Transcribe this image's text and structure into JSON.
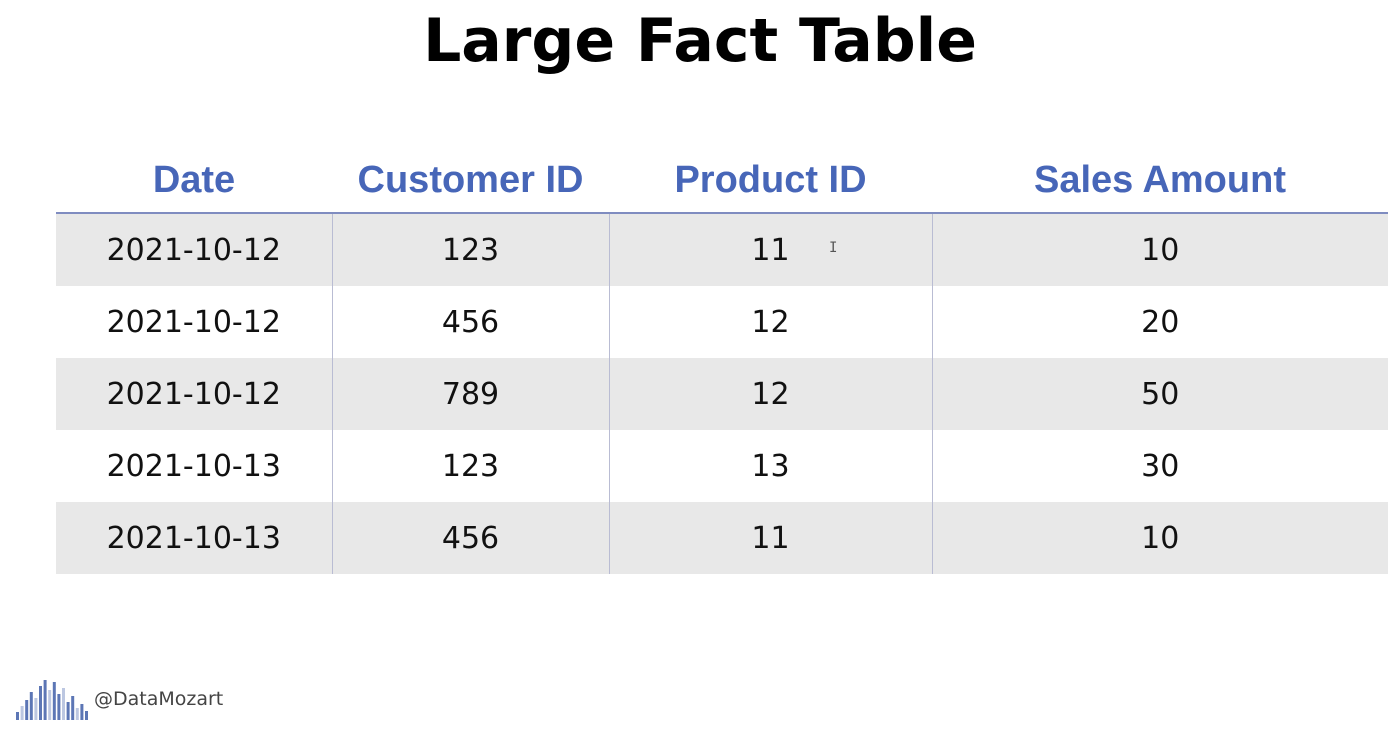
{
  "title": "Large Fact Table",
  "theme": {
    "header_color": "#4766b8",
    "stripe_color": "#e8e8e8",
    "divider_color": "#b9bcd3",
    "logo_color": "#3f5ea8"
  },
  "table": {
    "headers": [
      "Date",
      "Customer ID",
      "Product ID",
      "Sales Amount"
    ],
    "rows": [
      [
        "2021-10-12",
        "123",
        "11",
        "10"
      ],
      [
        "2021-10-12",
        "456",
        "12",
        "20"
      ],
      [
        "2021-10-12",
        "789",
        "12",
        "50"
      ],
      [
        "2021-10-13",
        "123",
        "13",
        "30"
      ],
      [
        "2021-10-13",
        "456",
        "11",
        "10"
      ]
    ]
  },
  "cursor": {
    "icon": "text-cursor-icon",
    "glyph": "I"
  },
  "footer": {
    "logo_icon": "datamozart-bars-logo-icon",
    "handle": "@DataMozart"
  }
}
